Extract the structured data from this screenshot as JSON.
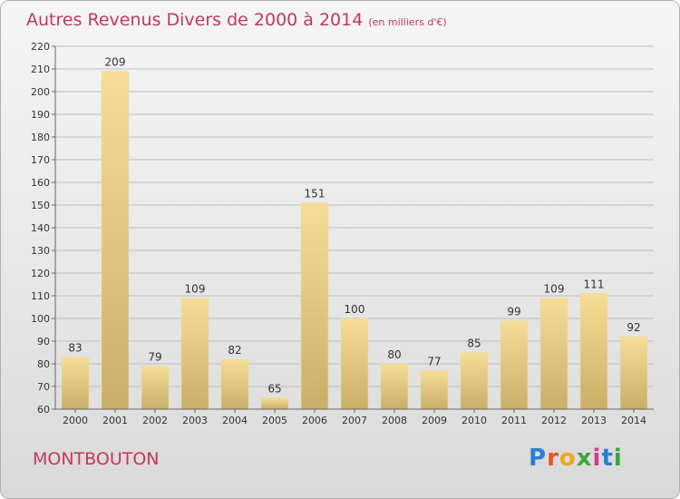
{
  "title": "Autres Revenus Divers de 2000 à 2014",
  "subtitle": "(en milliers d'€)",
  "location": "MONTBOUTON",
  "logo": {
    "text": "Proxiti",
    "letters": [
      "P",
      "r",
      "o",
      "x",
      "i",
      "t",
      "i"
    ]
  },
  "colors": {
    "title": "#c0395a",
    "bar_top": "#f6dd96",
    "bar_bottom": "#c9ae68"
  },
  "chart_data": {
    "type": "bar",
    "categories": [
      "2000",
      "2001",
      "2002",
      "2003",
      "2004",
      "2005",
      "2006",
      "2007",
      "2008",
      "2009",
      "2010",
      "2011",
      "2012",
      "2013",
      "2014"
    ],
    "values": [
      83,
      209,
      79,
      109,
      82,
      65,
      151,
      100,
      80,
      77,
      85,
      99,
      109,
      111,
      92
    ],
    "ylim": [
      60,
      220
    ],
    "yticks": [
      60,
      70,
      80,
      90,
      100,
      110,
      120,
      130,
      140,
      150,
      160,
      170,
      180,
      190,
      200,
      210,
      220
    ],
    "grid": true
  }
}
